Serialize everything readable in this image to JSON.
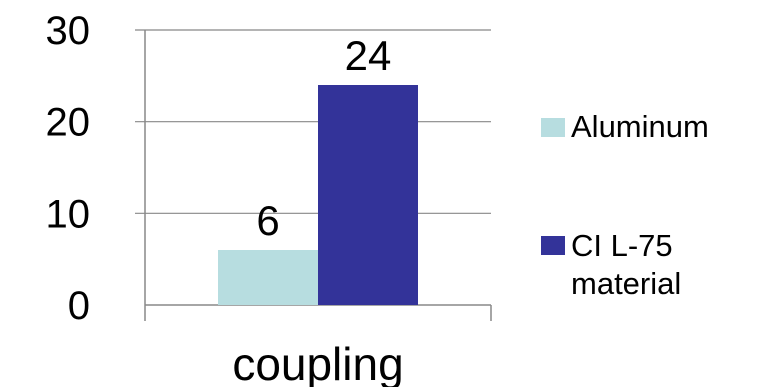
{
  "chart_data": {
    "type": "bar",
    "categories": [
      "coupling"
    ],
    "series": [
      {
        "name": "Aluminum",
        "values": [
          6
        ],
        "color": "#b7dde0"
      },
      {
        "name": "CI L-75 material",
        "name_lines": [
          "CI L-75",
          "material"
        ],
        "values": [
          24
        ],
        "color": "#333399"
      }
    ],
    "ylim": [
      0,
      30
    ],
    "yticks": [
      "0",
      "10",
      "20",
      "30"
    ],
    "grid": true,
    "legend": "right",
    "data_labels": [
      "6",
      "24"
    ]
  }
}
